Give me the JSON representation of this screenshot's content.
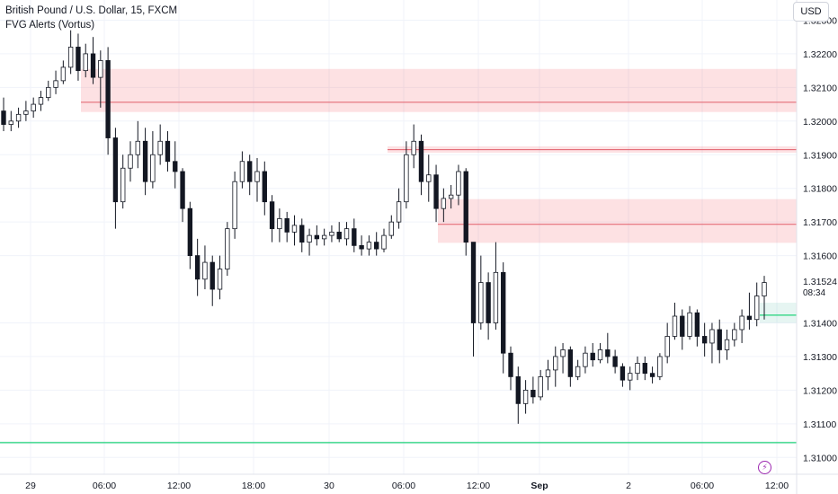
{
  "header": {
    "title": "British Pound / U.S. Dollar, 15, FXCM",
    "indicator": "FVG Alerts (Vortus)"
  },
  "currency_button": "USD",
  "icons": {
    "alert": "lightning-bolt-icon"
  },
  "colors": {
    "candle": "#131722",
    "bearish_fvg_fill": "rgba(242,54,69,0.15)",
    "bearish_fvg_line": "#e05d6a",
    "bullish_fvg_line": "#20d47a",
    "grid": "#f0f3fa"
  },
  "chart_data": {
    "type": "candlestick",
    "instrument": "British Pound / U.S. Dollar",
    "timeframe": "15",
    "ylim": [
      1.3095,
      1.3236
    ],
    "y_ticks": [
      "1.32300",
      "1.32200",
      "1.32100",
      "1.32000",
      "1.31900",
      "1.31800",
      "1.31700",
      "1.31600",
      "1.31400",
      "1.31300",
      "1.31200",
      "1.31100",
      "1.31000"
    ],
    "x_ticks": [
      "29",
      "06:00",
      "12:00",
      "18:00",
      "30",
      "06:00",
      "12:00",
      "Sep",
      "2",
      "06:00",
      "12:00"
    ],
    "last_price": "1.31524",
    "countdown": "08:34",
    "zones": [
      {
        "kind": "bearish",
        "top": 1.32155,
        "bottom": 1.32027,
        "mid": 1.32056
      },
      {
        "kind": "bearish",
        "top": 1.31925,
        "bottom": 1.31906,
        "mid": 1.31915
      },
      {
        "kind": "bearish",
        "top": 1.31768,
        "bottom": 1.31638,
        "mid": 1.31693
      },
      {
        "kind": "bullish",
        "top": 1.3146,
        "bottom": 1.314,
        "mid": 1.31423
      },
      {
        "kind": "bullish",
        "top": 1.31048,
        "bottom": 1.3104,
        "mid": 1.31044
      }
    ],
    "candles": [
      [
        1.3203,
        1.3207,
        1.3197,
        1.3199
      ],
      [
        1.3199,
        1.3203,
        1.3197,
        1.32
      ],
      [
        1.32,
        1.3204,
        1.3198,
        1.3202
      ],
      [
        1.3202,
        1.3206,
        1.32,
        1.3203
      ],
      [
        1.3203,
        1.3207,
        1.3201,
        1.3205
      ],
      [
        1.3205,
        1.3209,
        1.3203,
        1.3207
      ],
      [
        1.3207,
        1.3212,
        1.3206,
        1.321
      ],
      [
        1.321,
        1.3215,
        1.3208,
        1.3212
      ],
      [
        1.3212,
        1.3218,
        1.3211,
        1.3216
      ],
      [
        1.3216,
        1.3227,
        1.3214,
        1.3222
      ],
      [
        1.3222,
        1.3226,
        1.3212,
        1.3215
      ],
      [
        1.3215,
        1.3223,
        1.3213,
        1.322
      ],
      [
        1.322,
        1.3225,
        1.3211,
        1.3213
      ],
      [
        1.3213,
        1.3221,
        1.3204,
        1.3218
      ],
      [
        1.3218,
        1.3222,
        1.319,
        1.3195
      ],
      [
        1.3195,
        1.3198,
        1.3168,
        1.3176
      ],
      [
        1.3176,
        1.319,
        1.3174,
        1.3186
      ],
      [
        1.3186,
        1.3194,
        1.3182,
        1.319
      ],
      [
        1.319,
        1.32,
        1.3186,
        1.3194
      ],
      [
        1.3194,
        1.3198,
        1.3178,
        1.3182
      ],
      [
        1.3182,
        1.3197,
        1.318,
        1.319
      ],
      [
        1.319,
        1.3199,
        1.3187,
        1.3194
      ],
      [
        1.3194,
        1.3197,
        1.3185,
        1.3188
      ],
      [
        1.3188,
        1.3194,
        1.318,
        1.3185
      ],
      [
        1.3185,
        1.3186,
        1.317,
        1.3174
      ],
      [
        1.3174,
        1.3176,
        1.3156,
        1.316
      ],
      [
        1.316,
        1.3165,
        1.3148,
        1.3153
      ],
      [
        1.3153,
        1.3163,
        1.315,
        1.3158
      ],
      [
        1.3158,
        1.316,
        1.3145,
        1.315
      ],
      [
        1.315,
        1.316,
        1.3147,
        1.3156
      ],
      [
        1.3156,
        1.317,
        1.3154,
        1.3168
      ],
      [
        1.3168,
        1.3185,
        1.3165,
        1.3182
      ],
      [
        1.3182,
        1.3191,
        1.318,
        1.3188
      ],
      [
        1.3188,
        1.319,
        1.3178,
        1.3182
      ],
      [
        1.3182,
        1.3189,
        1.3176,
        1.3185
      ],
      [
        1.3185,
        1.3188,
        1.3172,
        1.3176
      ],
      [
        1.3176,
        1.3178,
        1.3164,
        1.3168
      ],
      [
        1.3168,
        1.3174,
        1.3164,
        1.3171
      ],
      [
        1.3171,
        1.3173,
        1.3164,
        1.3167
      ],
      [
        1.3167,
        1.3172,
        1.3163,
        1.3169
      ],
      [
        1.3169,
        1.3171,
        1.3161,
        1.3164
      ],
      [
        1.3164,
        1.3168,
        1.316,
        1.3166
      ],
      [
        1.3166,
        1.3169,
        1.3163,
        1.3165
      ],
      [
        1.3165,
        1.3168,
        1.3163,
        1.3166
      ],
      [
        1.3166,
        1.3169,
        1.3164,
        1.3167
      ],
      [
        1.3167,
        1.317,
        1.3164,
        1.3165
      ],
      [
        1.3165,
        1.317,
        1.3163,
        1.3168
      ],
      [
        1.3168,
        1.3171,
        1.3161,
        1.3163
      ],
      [
        1.3163,
        1.3166,
        1.316,
        1.3162
      ],
      [
        1.3162,
        1.3166,
        1.316,
        1.3164
      ],
      [
        1.3164,
        1.3167,
        1.316,
        1.3162
      ],
      [
        1.3162,
        1.3168,
        1.3161,
        1.3166
      ],
      [
        1.3166,
        1.3172,
        1.3165,
        1.317
      ],
      [
        1.317,
        1.318,
        1.3168,
        1.3176
      ],
      [
        1.3176,
        1.3194,
        1.3174,
        1.319
      ],
      [
        1.319,
        1.3199,
        1.3186,
        1.3194
      ],
      [
        1.3194,
        1.3196,
        1.3178,
        1.3182
      ],
      [
        1.3182,
        1.319,
        1.3176,
        1.3184
      ],
      [
        1.3184,
        1.3187,
        1.317,
        1.3174
      ],
      [
        1.3174,
        1.318,
        1.317,
        1.3177
      ],
      [
        1.3177,
        1.3181,
        1.3174,
        1.3178
      ],
      [
        1.3178,
        1.3187,
        1.3175,
        1.3185
      ],
      [
        1.3185,
        1.3186,
        1.316,
        1.3164
      ],
      [
        1.3164,
        1.3164,
        1.313,
        1.314
      ],
      [
        1.314,
        1.316,
        1.3138,
        1.3152
      ],
      [
        1.3152,
        1.3155,
        1.3135,
        1.314
      ],
      [
        1.314,
        1.3164,
        1.3138,
        1.3155
      ],
      [
        1.3155,
        1.3158,
        1.3125,
        1.3131
      ],
      [
        1.3131,
        1.3133,
        1.312,
        1.3124
      ],
      [
        1.3124,
        1.3127,
        1.311,
        1.3116
      ],
      [
        1.3116,
        1.3123,
        1.3113,
        1.312
      ],
      [
        1.312,
        1.3124,
        1.3116,
        1.3118
      ],
      [
        1.3118,
        1.3126,
        1.3117,
        1.3124
      ],
      [
        1.3124,
        1.3129,
        1.312,
        1.3126
      ],
      [
        1.3126,
        1.3133,
        1.3121,
        1.313
      ],
      [
        1.313,
        1.3134,
        1.3125,
        1.3132
      ],
      [
        1.3132,
        1.3133,
        1.3121,
        1.3124
      ],
      [
        1.3124,
        1.3129,
        1.3123,
        1.3127
      ],
      [
        1.3127,
        1.3133,
        1.3125,
        1.3131
      ],
      [
        1.3131,
        1.3134,
        1.3127,
        1.3129
      ],
      [
        1.3129,
        1.3134,
        1.3128,
        1.3132
      ],
      [
        1.3132,
        1.3137,
        1.3128,
        1.313
      ],
      [
        1.313,
        1.3132,
        1.3125,
        1.3127
      ],
      [
        1.3127,
        1.3128,
        1.3121,
        1.3123
      ],
      [
        1.3123,
        1.3127,
        1.312,
        1.3125
      ],
      [
        1.3125,
        1.313,
        1.3123,
        1.3128
      ],
      [
        1.3128,
        1.313,
        1.3123,
        1.3125
      ],
      [
        1.3125,
        1.3127,
        1.3122,
        1.3124
      ],
      [
        1.3124,
        1.3131,
        1.3123,
        1.313
      ],
      [
        1.313,
        1.314,
        1.3128,
        1.3136
      ],
      [
        1.3136,
        1.3146,
        1.3135,
        1.3142
      ],
      [
        1.3142,
        1.3144,
        1.3132,
        1.3136
      ],
      [
        1.3136,
        1.3145,
        1.3135,
        1.3143
      ],
      [
        1.3143,
        1.3144,
        1.3133,
        1.3136
      ],
      [
        1.3136,
        1.314,
        1.313,
        1.3134
      ],
      [
        1.3134,
        1.314,
        1.3128,
        1.3138
      ],
      [
        1.3138,
        1.3141,
        1.3128,
        1.3132
      ],
      [
        1.3132,
        1.3138,
        1.3129,
        1.3135
      ],
      [
        1.3135,
        1.314,
        1.3133,
        1.3138
      ],
      [
        1.3138,
        1.3144,
        1.3134,
        1.3142
      ],
      [
        1.3142,
        1.3149,
        1.3138,
        1.3141
      ],
      [
        1.3141,
        1.3152,
        1.3139,
        1.3148
      ],
      [
        1.3148,
        1.3154,
        1.3141,
        1.3152
      ]
    ]
  }
}
